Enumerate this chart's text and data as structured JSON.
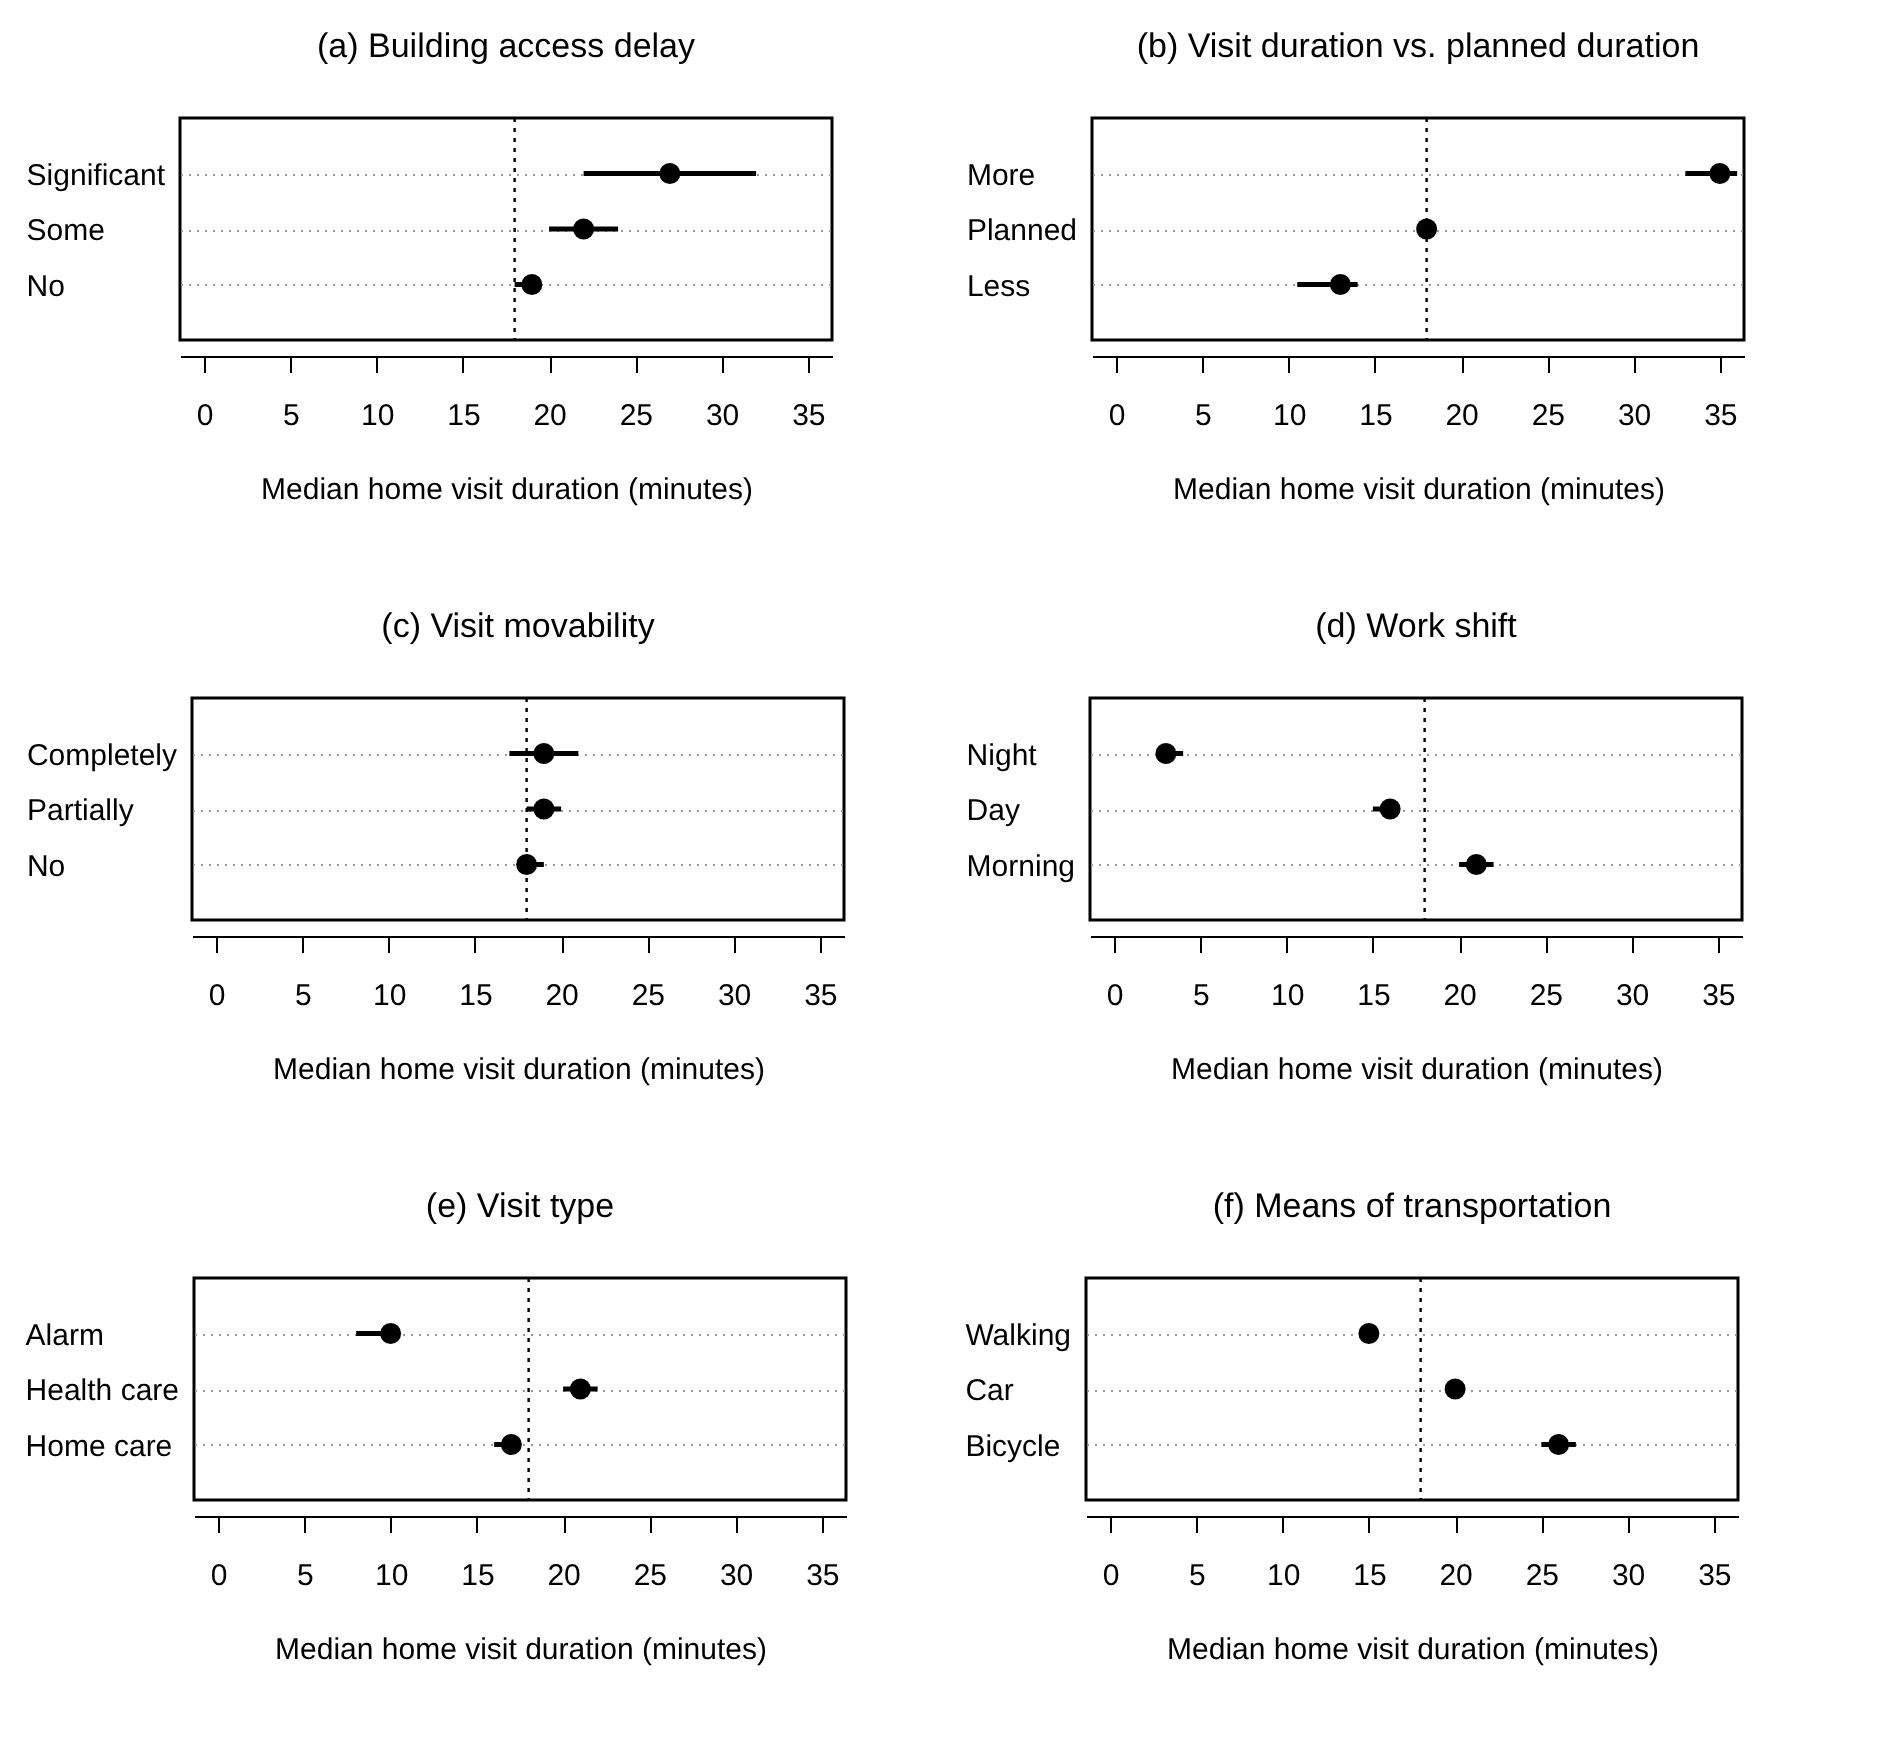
{
  "chart_data": [
    {
      "type": "scatter",
      "orientation": "horizontal",
      "title": "(a) Building access delay",
      "xlabel": "Median home visit duration (minutes)",
      "categories": [
        "Significant",
        "Some",
        "No"
      ],
      "values": [
        27,
        22,
        19
      ],
      "errors": [
        [
          22,
          32
        ],
        [
          20,
          24
        ],
        [
          18,
          19
        ]
      ],
      "color": "#000000",
      "xlim": [
        -1.4,
        36.4
      ],
      "xticks": [
        0,
        5,
        10,
        15,
        20,
        25,
        30,
        35
      ],
      "grid": "y",
      "marker": "circle",
      "ref_lines": [
        {
          "axis": "x",
          "value": 18,
          "line_style": "dotted"
        }
      ]
    },
    {
      "type": "scatter",
      "orientation": "horizontal",
      "title": "(b) Visit duration vs. planned duration",
      "xlabel": "Median home visit duration (minutes)",
      "categories": [
        "More",
        "Planned",
        "Less"
      ],
      "values": [
        35,
        18,
        13
      ],
      "errors": [
        [
          33,
          36
        ],
        null,
        [
          10.5,
          14
        ]
      ],
      "color": "#000000",
      "xlim": [
        -1.4,
        36.4
      ],
      "xticks": [
        0,
        5,
        10,
        15,
        20,
        25,
        30,
        35
      ],
      "grid": "y",
      "marker": "circle",
      "ref_lines": [
        {
          "axis": "x",
          "value": 18,
          "line_style": "dotted"
        }
      ]
    },
    {
      "type": "scatter",
      "orientation": "horizontal",
      "title": "(c) Visit movability",
      "xlabel": "Median home visit duration (minutes)",
      "categories": [
        "Completely",
        "Partially",
        "No"
      ],
      "values": [
        19,
        19,
        18
      ],
      "errors": [
        [
          17,
          21
        ],
        [
          18,
          20
        ],
        [
          18,
          19
        ]
      ],
      "color": "#000000",
      "xlim": [
        -1.4,
        36.4
      ],
      "xticks": [
        0,
        5,
        10,
        15,
        20,
        25,
        30,
        35
      ],
      "grid": "y",
      "marker": "circle",
      "ref_lines": [
        {
          "axis": "x",
          "value": 18,
          "line_style": "dotted"
        }
      ]
    },
    {
      "type": "scatter",
      "orientation": "horizontal",
      "title": "(d) Work shift",
      "xlabel": "Median home visit duration (minutes)",
      "categories": [
        "Night",
        "Day",
        "Morning"
      ],
      "values": [
        3,
        16,
        21
      ],
      "errors": [
        [
          3,
          4
        ],
        [
          15,
          16
        ],
        [
          20,
          22
        ]
      ],
      "color": "#000000",
      "xlim": [
        -1.4,
        36.4
      ],
      "xticks": [
        0,
        5,
        10,
        15,
        20,
        25,
        30,
        35
      ],
      "grid": "y",
      "marker": "circle",
      "ref_lines": [
        {
          "axis": "x",
          "value": 18,
          "line_style": "dotted"
        }
      ]
    },
    {
      "type": "scatter",
      "orientation": "horizontal",
      "title": "(e) Visit type",
      "xlabel": "Median home visit duration (minutes)",
      "categories": [
        "Alarm",
        "Health care",
        "Home care"
      ],
      "values": [
        10,
        21,
        17
      ],
      "errors": [
        [
          8,
          10
        ],
        [
          20,
          22
        ],
        [
          16,
          17
        ]
      ],
      "color": "#000000",
      "xlim": [
        -1.4,
        36.4
      ],
      "xticks": [
        0,
        5,
        10,
        15,
        20,
        25,
        30,
        35
      ],
      "grid": "y",
      "marker": "circle",
      "ref_lines": [
        {
          "axis": "x",
          "value": 18,
          "line_style": "dotted"
        }
      ]
    },
    {
      "type": "scatter",
      "orientation": "horizontal",
      "title": "(f) Means of transportation",
      "xlabel": "Median home visit duration (minutes)",
      "categories": [
        "Walking",
        "Car",
        "Bicycle"
      ],
      "values": [
        15,
        20,
        26
      ],
      "errors": [
        null,
        null,
        [
          25,
          27
        ]
      ],
      "color": "#000000",
      "xlim": [
        -1.4,
        36.4
      ],
      "xticks": [
        0,
        5,
        10,
        15,
        20,
        25,
        30,
        35
      ],
      "grid": "y",
      "marker": "circle",
      "ref_lines": [
        {
          "axis": "x",
          "value": 18,
          "line_style": "dotted"
        }
      ]
    }
  ]
}
